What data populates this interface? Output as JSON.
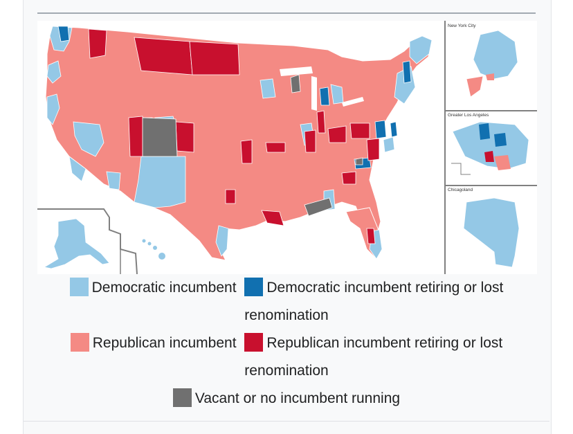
{
  "colors": {
    "dem_incumbent": "#94c8e6",
    "dem_retiring": "#1170b0",
    "rep_incumbent": "#f48a84",
    "rep_retiring": "#c8102e",
    "vacant": "#707070",
    "border": "#ffffff",
    "frame_line": "#808080"
  },
  "insets": {
    "nyc": "New York City",
    "la": "Greater Los Angeles",
    "chicago": "Chicagoland"
  },
  "legend": {
    "dem_incumbent": "Democratic incumbent",
    "dem_retiring": "Democratic incumbent retiring or lost renomination",
    "rep_incumbent": "Republican incumbent",
    "rep_retiring": "Republican incumbent retiring or lost renomination",
    "vacant": "Vacant or no incumbent running"
  }
}
